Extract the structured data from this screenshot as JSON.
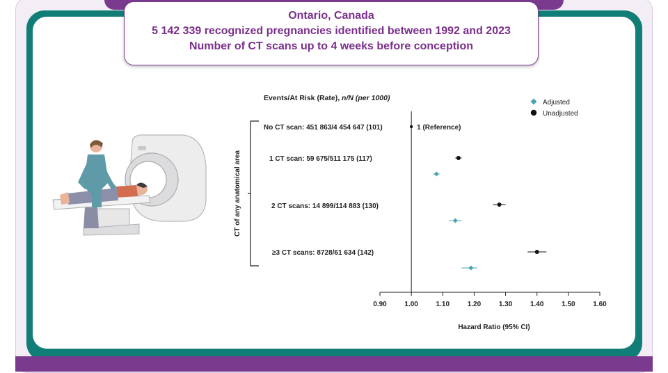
{
  "header": {
    "line1": "Ontario, Canada",
    "line2": "5 142 339 recognized pregnancies identified between 1992 and 2023",
    "line3": "Number of CT scans up to 4 weeks before conception"
  },
  "colors": {
    "purple": "#7a3a8e",
    "teal": "#117d77",
    "adjusted": "#4aa3b0",
    "unadjusted": "#111111"
  },
  "chart_data": {
    "type": "forest",
    "column_header": "Events/At Risk (Rate), ",
    "column_header_italic": "n/N (per 1000)",
    "group_label": "CT of any anatomical area",
    "xlabel": "Hazard Ratio (95% CI)",
    "xlim": [
      0.9,
      1.6
    ],
    "ticks": [
      "0.90",
      "1.00",
      "1.10",
      "1.20",
      "1.30",
      "1.40",
      "1.50",
      "1.60"
    ],
    "reference_value": 1.0,
    "legend": [
      {
        "name": "Adjusted",
        "marker": "diamond",
        "color": "#4aa3b0"
      },
      {
        "name": "Unadjusted",
        "marker": "circle",
        "color": "#111111"
      }
    ],
    "rows": [
      {
        "label": "No CT scan: 451 863/4 454 647 (101)",
        "annotation": "1 (Reference)",
        "unadjusted": {
          "hr": 1.0,
          "lo": 1.0,
          "hi": 1.0
        },
        "adjusted": null
      },
      {
        "label": "1 CT scan: 59 675/511 175 (117)",
        "annotation": "",
        "unadjusted": {
          "hr": 1.15,
          "lo": 1.14,
          "hi": 1.16
        },
        "adjusted": {
          "hr": 1.08,
          "lo": 1.07,
          "hi": 1.09
        }
      },
      {
        "label": "2 CT scans: 14 899/114 883 (130)",
        "annotation": "",
        "unadjusted": {
          "hr": 1.28,
          "lo": 1.26,
          "hi": 1.3
        },
        "adjusted": {
          "hr": 1.14,
          "lo": 1.12,
          "hi": 1.16
        }
      },
      {
        "label": "≥3 CT scans: 8728/61 634 (142)",
        "annotation": "",
        "unadjusted": {
          "hr": 1.4,
          "lo": 1.37,
          "hi": 1.43
        },
        "adjusted": {
          "hr": 1.19,
          "lo": 1.16,
          "hi": 1.21
        }
      }
    ]
  }
}
